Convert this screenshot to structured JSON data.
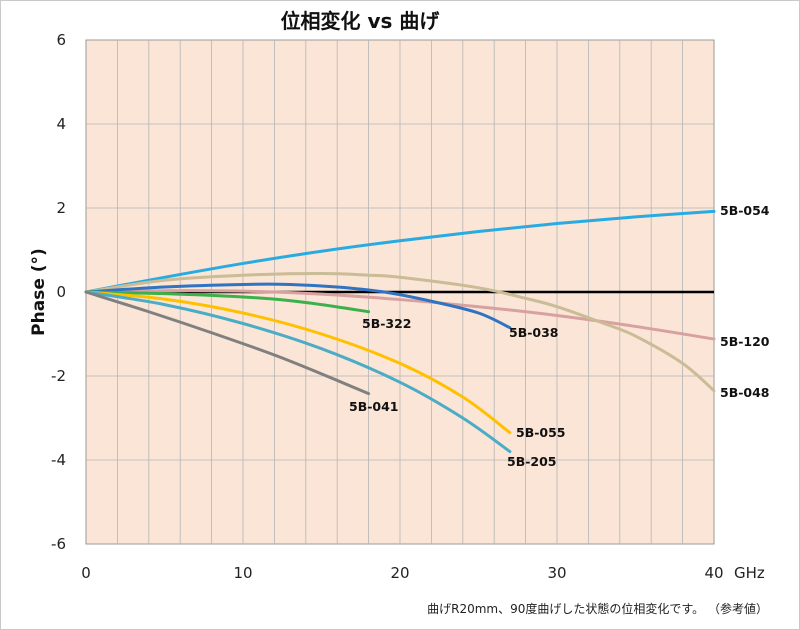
{
  "chart_data": {
    "type": "line",
    "title": "位相変化 vs 曲げ",
    "ylabel": "Phase (°)",
    "xunit": "GHz",
    "xlim": [
      0,
      40
    ],
    "ylim": [
      -6,
      6
    ],
    "x_ticks": [
      "0",
      "10",
      "20",
      "30",
      "40"
    ],
    "y_ticks": [
      "6",
      "4",
      "2",
      "0",
      "-2",
      "-4",
      "-6"
    ],
    "grid": true,
    "note": "曲げR20mm、90度曲げした状態の位相変化です。 （参考値）",
    "series": [
      {
        "name": "5B-054",
        "color": "#29ABE2",
        "points": [
          [
            0,
            0
          ],
          [
            5,
            0.35
          ],
          [
            10,
            0.68
          ],
          [
            15,
            0.97
          ],
          [
            20,
            1.22
          ],
          [
            25,
            1.44
          ],
          [
            30,
            1.63
          ],
          [
            35,
            1.79
          ],
          [
            40,
            1.92
          ]
        ]
      },
      {
        "name": "5B-120",
        "color": "#D9A0A0",
        "points": [
          [
            0,
            0
          ],
          [
            5,
            0.03
          ],
          [
            10,
            0.02
          ],
          [
            15,
            -0.05
          ],
          [
            20,
            -0.18
          ],
          [
            25,
            -0.35
          ],
          [
            30,
            -0.56
          ],
          [
            35,
            -0.82
          ],
          [
            40,
            -1.12
          ]
        ]
      },
      {
        "name": "5B-048",
        "color": "#C9BC96",
        "points": [
          [
            0,
            0
          ],
          [
            5,
            0.28
          ],
          [
            10,
            0.4
          ],
          [
            15,
            0.44
          ],
          [
            18,
            0.4
          ],
          [
            20,
            0.35
          ],
          [
            25,
            0.1
          ],
          [
            28,
            -0.15
          ],
          [
            30,
            -0.35
          ],
          [
            33,
            -0.75
          ],
          [
            35,
            -1.05
          ],
          [
            38,
            -1.7
          ],
          [
            40,
            -2.35
          ]
        ]
      },
      {
        "name": "5B-038",
        "color": "#2F73C2",
        "points": [
          [
            0,
            0
          ],
          [
            5,
            0.12
          ],
          [
            10,
            0.18
          ],
          [
            13,
            0.18
          ],
          [
            16,
            0.12
          ],
          [
            19,
            0.0
          ],
          [
            22,
            -0.22
          ],
          [
            25,
            -0.5
          ],
          [
            27,
            -0.85
          ]
        ]
      },
      {
        "name": "5B-322",
        "color": "#3BB04B",
        "points": [
          [
            0,
            0
          ],
          [
            4,
            -0.03
          ],
          [
            8,
            -0.08
          ],
          [
            12,
            -0.17
          ],
          [
            15,
            -0.3
          ],
          [
            18,
            -0.47
          ]
        ]
      },
      {
        "name": "5B-055",
        "color": "#FFC000",
        "points": [
          [
            0,
            0
          ],
          [
            5,
            -0.17
          ],
          [
            10,
            -0.5
          ],
          [
            15,
            -1.0
          ],
          [
            20,
            -1.7
          ],
          [
            24,
            -2.5
          ],
          [
            27,
            -3.35
          ]
        ]
      },
      {
        "name": "5B-205",
        "color": "#4BACC6",
        "points": [
          [
            0,
            0
          ],
          [
            5,
            -0.3
          ],
          [
            10,
            -0.75
          ],
          [
            15,
            -1.35
          ],
          [
            20,
            -2.15
          ],
          [
            24,
            -3.0
          ],
          [
            27,
            -3.8
          ]
        ]
      },
      {
        "name": "5B-041",
        "color": "#808080",
        "points": [
          [
            0,
            0
          ],
          [
            4,
            -0.47
          ],
          [
            8,
            -0.97
          ],
          [
            12,
            -1.5
          ],
          [
            15,
            -1.95
          ],
          [
            18,
            -2.42
          ]
        ]
      }
    ]
  }
}
